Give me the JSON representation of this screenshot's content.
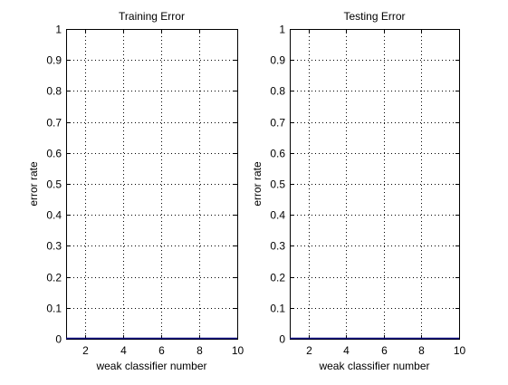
{
  "figure": {
    "background": "#ffffff",
    "axes_color": "#000000",
    "grid_color": "#000000",
    "line_color": "#000080"
  },
  "chart_data": [
    {
      "type": "line",
      "title": "Training Error",
      "xlabel": "weak classifier number",
      "ylabel": "error rate",
      "xlim": [
        1,
        10
      ],
      "ylim": [
        0,
        1
      ],
      "xticks": [
        2,
        4,
        6,
        8,
        10
      ],
      "yticks": [
        0,
        0.1,
        0.2,
        0.3,
        0.4,
        0.5,
        0.6,
        0.7,
        0.8,
        0.9,
        1
      ],
      "ytick_labels": [
        "0",
        "0.1",
        "0.2",
        "0.3",
        "0.4",
        "0.5",
        "0.6",
        "0.7",
        "0.8",
        "0.9",
        "1"
      ],
      "grid": "dotted",
      "series": [
        {
          "x": [
            1,
            2,
            3,
            4,
            5,
            6,
            7,
            8,
            9,
            10
          ],
          "y": [
            0,
            0,
            0,
            0,
            0,
            0,
            0,
            0,
            0,
            0
          ]
        }
      ]
    },
    {
      "type": "line",
      "title": "Testing Error",
      "xlabel": "weak classifier number",
      "ylabel": "error rate",
      "xlim": [
        1,
        10
      ],
      "ylim": [
        0,
        1
      ],
      "xticks": [
        2,
        4,
        6,
        8,
        10
      ],
      "yticks": [
        0,
        0.1,
        0.2,
        0.3,
        0.4,
        0.5,
        0.6,
        0.7,
        0.8,
        0.9,
        1
      ],
      "ytick_labels": [
        "0",
        "0.1",
        "0.2",
        "0.3",
        "0.4",
        "0.5",
        "0.6",
        "0.7",
        "0.8",
        "0.9",
        "1"
      ],
      "grid": "dotted",
      "series": [
        {
          "x": [
            1,
            2,
            3,
            4,
            5,
            6,
            7,
            8,
            9,
            10
          ],
          "y": [
            0,
            0,
            0,
            0,
            0,
            0,
            0,
            0,
            0,
            0
          ]
        }
      ]
    }
  ]
}
